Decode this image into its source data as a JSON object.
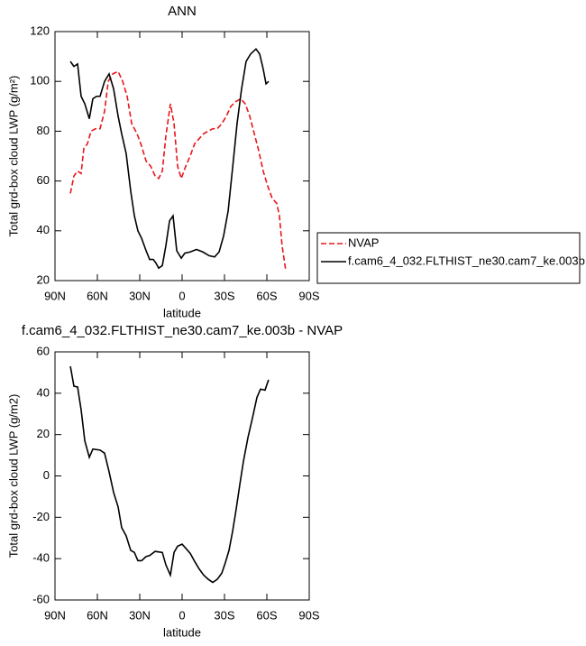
{
  "chart_data": [
    {
      "type": "line",
      "title": "ANN",
      "xlabel": "latitude",
      "ylabel": "Total grd-box cloud LWP (g/m²)",
      "xlim": [
        90,
        -90
      ],
      "xticks": [
        {
          "value": 90,
          "label": "90N"
        },
        {
          "value": 60,
          "label": "60N"
        },
        {
          "value": 30,
          "label": "30N"
        },
        0,
        {
          "value": -30,
          "label": "30S"
        },
        {
          "value": -60,
          "label": "60S"
        },
        {
          "value": -90,
          "label": "90S"
        }
      ],
      "ylim": [
        20,
        120
      ],
      "yticks": [
        20,
        40,
        60,
        80,
        100,
        120
      ],
      "legend": "right",
      "series": [
        {
          "name": "NVAP",
          "color": "#e8161b",
          "style": "dashed",
          "x": [
            79.1,
            76.6,
            74,
            71.5,
            69.6,
            67,
            64.5,
            61.3,
            58.1,
            54.9,
            52.3,
            49.1,
            45.3,
            42.1,
            38.9,
            35.7,
            31.9,
            28.7,
            25.5,
            22.3,
            19.1,
            16.6,
            14,
            11.5,
            8.3,
            5.7,
            3.2,
            0.6,
            -2.6,
            -5.7,
            -8.9,
            -12.1,
            -15.3,
            -18.5,
            -21.7,
            -24.9,
            -28.1,
            -31.3,
            -34.5,
            -38.3,
            -41.5,
            -44.7,
            -47.9,
            -51.1,
            -54.3,
            -57.4,
            -60.6,
            -63.8,
            -67,
            -68.9,
            -70.8,
            -73.4
          ],
          "values": [
            55,
            62,
            64,
            63,
            73,
            75,
            80,
            81,
            81,
            88,
            100,
            103,
            104,
            100,
            94,
            83,
            79,
            74,
            68,
            66,
            62,
            61,
            64,
            78,
            91,
            83,
            66,
            61,
            66,
            70,
            75,
            77,
            79,
            80,
            81,
            81,
            83,
            86,
            90,
            92,
            93,
            91,
            86,
            79,
            72,
            64,
            58,
            53,
            51,
            46,
            34,
            24
          ]
        },
        {
          "name": "f.cam6_4_032.FLTHIST_ne30.cam7_ke.003b",
          "color": "#000000",
          "style": "solid",
          "x": [
            79.1,
            76.6,
            74,
            71.5,
            68.9,
            65.7,
            63.2,
            60.6,
            58.1,
            54.9,
            51.7,
            48.5,
            45.3,
            42.8,
            39.6,
            36.4,
            33.8,
            31.3,
            28.7,
            25.5,
            23,
            20.4,
            18.5,
            16.6,
            14,
            11.5,
            8.9,
            6.4,
            3.8,
            0.6,
            -1.9,
            -5.7,
            -10.2,
            -14.7,
            -19.1,
            -23,
            -26.2,
            -29.4,
            -32.6,
            -35.7,
            -38.9,
            -42.1,
            -45.3,
            -48.5,
            -52.3,
            -54.9,
            -57.4,
            -59.4,
            -61.3
          ],
          "values": [
            108,
            106,
            107,
            94,
            91,
            85,
            93,
            94,
            94,
            100,
            103,
            97,
            86,
            79,
            71,
            56,
            46,
            40,
            37,
            32,
            28.5,
            28.5,
            27,
            25,
            26,
            34,
            44,
            46,
            32,
            29,
            31,
            31.5,
            32.5,
            31.5,
            30,
            29.5,
            31.5,
            38,
            48,
            65,
            83,
            97,
            108,
            111,
            113,
            111,
            105,
            99,
            100
          ]
        }
      ]
    },
    {
      "type": "line",
      "title": "f.cam6_4_032.FLTHIST_ne30.cam7_ke.003b - NVAP",
      "xlabel": "latitude",
      "ylabel": "Total grd-box cloud LWP (g/m2)",
      "xlim": [
        90,
        -90
      ],
      "xticks": [
        {
          "value": 90,
          "label": "90N"
        },
        {
          "value": 60,
          "label": "60N"
        },
        {
          "value": 30,
          "label": "30N"
        },
        0,
        {
          "value": -30,
          "label": "30S"
        },
        {
          "value": -60,
          "label": "60S"
        },
        {
          "value": -90,
          "label": "90S"
        }
      ],
      "ylim": [
        -60,
        60
      ],
      "yticks": [
        -60,
        -40,
        -20,
        0,
        20,
        40,
        60
      ],
      "color": "#000000",
      "x": [
        79.1,
        76.6,
        74,
        71.5,
        68.9,
        65.7,
        63.2,
        58.1,
        54.9,
        51.7,
        48.5,
        45.3,
        42.8,
        39.6,
        36.4,
        33.8,
        31.3,
        28.7,
        25.5,
        23,
        19.1,
        14,
        11.5,
        8.3,
        5.7,
        3.2,
        0,
        -2.6,
        -5.8,
        -9,
        -12.1,
        -15.3,
        -18.5,
        -21.7,
        -24.9,
        -28.1,
        -30.6,
        -33.2,
        -35.7,
        -38.3,
        -40.9,
        -43.4,
        -46.6,
        -49.8,
        -53,
        -55.5,
        -58.7,
        -61.2
      ],
      "values": [
        53,
        43.4,
        43,
        32,
        17,
        9,
        13,
        12.5,
        11,
        2,
        -8,
        -15,
        -25,
        -29,
        -36,
        -37,
        -41,
        -41,
        -39,
        -38.5,
        -36.5,
        -37,
        -43,
        -48,
        -37,
        -34,
        -33,
        -35,
        -37.5,
        -41.5,
        -45,
        -48,
        -50,
        -51.5,
        -50,
        -47,
        -42,
        -36,
        -27,
        -16,
        -4,
        7,
        18.5,
        28,
        38,
        42,
        41.5,
        46.5
      ]
    }
  ]
}
